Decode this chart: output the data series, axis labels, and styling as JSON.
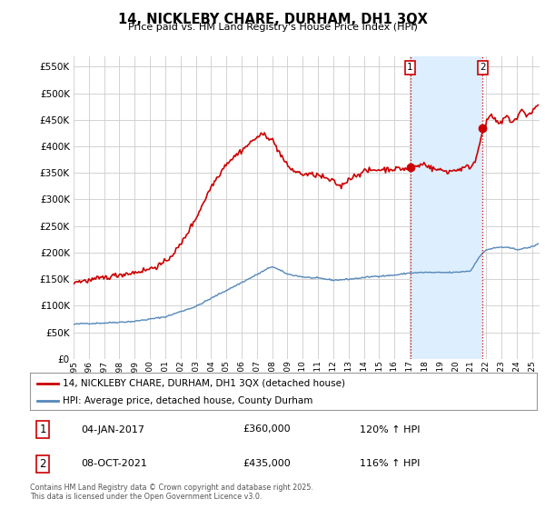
{
  "title": "14, NICKLEBY CHARE, DURHAM, DH1 3QX",
  "subtitle": "Price paid vs. HM Land Registry's House Price Index (HPI)",
  "ylim": [
    0,
    570000
  ],
  "yticks": [
    0,
    50000,
    100000,
    150000,
    200000,
    250000,
    300000,
    350000,
    400000,
    450000,
    500000,
    550000
  ],
  "xmin": 1995,
  "xmax": 2025.5,
  "xticks": [
    1995,
    1996,
    1997,
    1998,
    1999,
    2000,
    2001,
    2002,
    2003,
    2004,
    2005,
    2006,
    2007,
    2008,
    2009,
    2010,
    2011,
    2012,
    2013,
    2014,
    2015,
    2016,
    2017,
    2018,
    2019,
    2020,
    2021,
    2022,
    2023,
    2024,
    2025
  ],
  "marker1_x": 2017.03,
  "marker1_y": 360000,
  "marker1_label": "1",
  "marker1_date": "04-JAN-2017",
  "marker1_price": "£360,000",
  "marker1_hpi": "120% ↑ HPI",
  "marker2_x": 2021.77,
  "marker2_y": 435000,
  "marker2_label": "2",
  "marker2_date": "08-OCT-2021",
  "marker2_price": "£435,000",
  "marker2_hpi": "116% ↑ HPI",
  "red_color": "#cc0000",
  "blue_color": "#5588bb",
  "shade_color": "#ddeeff",
  "dashed_color": "#cc0000",
  "legend_entry1": "14, NICKLEBY CHARE, DURHAM, DH1 3QX (detached house)",
  "legend_entry2": "HPI: Average price, detached house, County Durham",
  "footnote": "Contains HM Land Registry data © Crown copyright and database right 2025.\nThis data is licensed under the Open Government Licence v3.0.",
  "bg_color": "#ffffff",
  "plot_bg_color": "#ffffff"
}
